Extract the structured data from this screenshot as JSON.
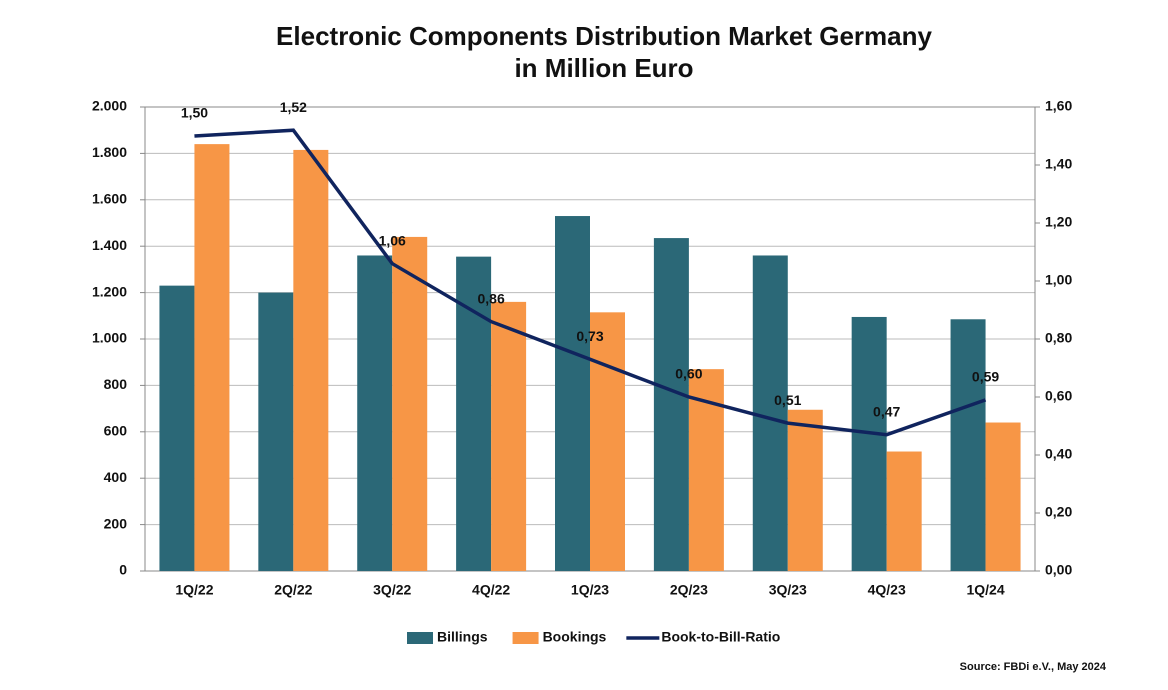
{
  "chart_data": {
    "type": "bar",
    "title": [
      "Electronic Components Distribution Market Germany",
      "in Million Euro"
    ],
    "source": "Source: FBDi e.V., May 2024",
    "categories": [
      "1Q/22",
      "2Q/22",
      "3Q/22",
      "4Q/22",
      "1Q/23",
      "2Q/23",
      "3Q/23",
      "4Q/23",
      "1Q/24"
    ],
    "series": [
      {
        "name": "Billings",
        "color": "#2b6877",
        "values": [
          1230,
          1200,
          1360,
          1355,
          1530,
          1435,
          1360,
          1095,
          1085
        ]
      },
      {
        "name": "Bookings",
        "color": "#f79646",
        "values": [
          1840,
          1815,
          1440,
          1160,
          1115,
          870,
          695,
          515,
          640
        ]
      },
      {
        "name": "Book-to-Bill-Ratio",
        "type": "line",
        "axis": "y2",
        "color": "#10245e",
        "values": [
          1.5,
          1.52,
          1.06,
          0.86,
          0.73,
          0.6,
          0.51,
          0.47,
          0.59
        ],
        "value_labels": [
          "1,50",
          "1,52",
          "1,06",
          "0,86",
          "0,73",
          "0,60",
          "0,51",
          "0,47",
          "0,59"
        ]
      }
    ],
    "ylim": [
      0,
      2000
    ],
    "yticks": [
      0,
      200,
      400,
      600,
      800,
      {
        "value": 1000,
        "label": "1.000"
      },
      {
        "value": 1200,
        "label": "1.200"
      },
      {
        "value": 1400,
        "label": "1.400"
      },
      {
        "value": 1600,
        "label": "1.600"
      },
      {
        "value": 1800,
        "label": "1.800"
      },
      {
        "value": 2000,
        "label": "2.000"
      }
    ],
    "y2lim": [
      0,
      1.6
    ],
    "y2ticks": [
      {
        "value": 0,
        "label": "0,00"
      },
      {
        "value": 0.2,
        "label": "0,20"
      },
      {
        "value": 0.4,
        "label": "0,40"
      },
      {
        "value": 0.6,
        "label": "0,60"
      },
      {
        "value": 0.8,
        "label": "0,80"
      },
      {
        "value": 1.0,
        "label": "1,00"
      },
      {
        "value": 1.2,
        "label": "1,20"
      },
      {
        "value": 1.4,
        "label": "1,40"
      },
      {
        "value": 1.6,
        "label": "1,60"
      }
    ],
    "grid": true,
    "legend": "bottom"
  }
}
